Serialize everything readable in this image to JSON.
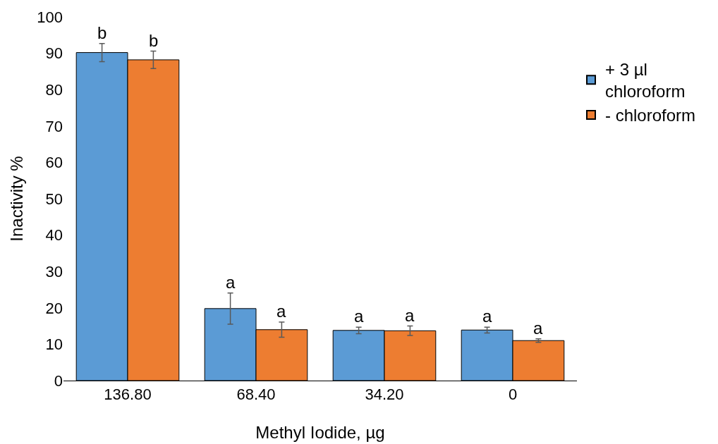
{
  "chart_data": {
    "type": "bar",
    "xlabel": "Methyl Iodide, µg",
    "ylabel": "Inactivity %",
    "categories": [
      "136.80",
      "68.40",
      "34.20",
      "0"
    ],
    "series": [
      {
        "name": "+ 3 µl chloroform",
        "color": "#5b9bd5",
        "values": [
          90.2,
          19.8,
          13.8,
          13.9
        ],
        "errors": [
          2.5,
          4.3,
          0.9,
          0.8
        ]
      },
      {
        "name": "- chloroform",
        "color": "#ed7d31",
        "values": [
          88.2,
          14.0,
          13.7,
          11.0
        ],
        "errors": [
          2.4,
          2.1,
          1.3,
          0.5
        ]
      }
    ],
    "ylim": [
      0,
      100
    ],
    "yticks": [
      0,
      10,
      20,
      30,
      40,
      50,
      60,
      70,
      80,
      90,
      100
    ],
    "grid": false,
    "legend": "right",
    "annotations": [
      {
        "text": "b",
        "x": "136.80",
        "y": 90.2
      },
      {
        "text": "b",
        "x": "136.80",
        "y": 88.2
      },
      {
        "text": "a",
        "x": "68.40",
        "y": 19.8
      },
      {
        "text": "a",
        "x": "68.40",
        "y": 14.0
      },
      {
        "text": "a",
        "x": "34.20",
        "y": 13.8
      },
      {
        "text": "a",
        "x": "34.20",
        "y": 13.7
      },
      {
        "text": "a",
        "x": "0",
        "y": 13.9
      },
      {
        "text": "a",
        "x": "0",
        "y": 11.0
      }
    ]
  }
}
